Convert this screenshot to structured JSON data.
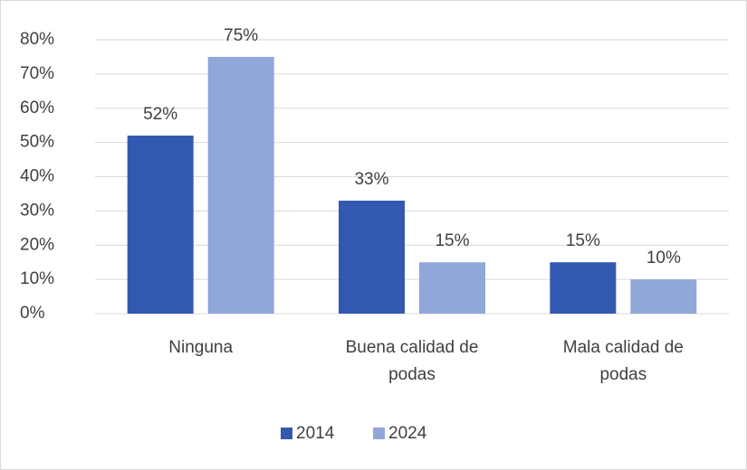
{
  "chart_data": {
    "type": "bar",
    "categories": [
      "Ninguna",
      "Buena calidad de podas",
      "Mala calidad de podas"
    ],
    "series": [
      {
        "name": "2014",
        "color": "#3358b0",
        "values": [
          52,
          33,
          15
        ],
        "value_labels": [
          "52%",
          "33%",
          "15%"
        ]
      },
      {
        "name": "2024",
        "color": "#91a7da",
        "values": [
          75,
          15,
          10
        ],
        "value_labels": [
          "75%",
          "15%",
          "10%"
        ]
      }
    ],
    "ylim": [
      0,
      80
    ],
    "yticks": [
      {
        "value": 0,
        "label": "0%"
      },
      {
        "value": 10,
        "label": "10%"
      },
      {
        "value": 20,
        "label": "20%"
      },
      {
        "value": 30,
        "label": "30%"
      },
      {
        "value": 40,
        "label": "40%"
      },
      {
        "value": 50,
        "label": "50%"
      },
      {
        "value": 60,
        "label": "60%"
      },
      {
        "value": 70,
        "label": "70%"
      },
      {
        "value": 80,
        "label": "80%"
      }
    ],
    "grid": true,
    "legend": "bottom"
  }
}
